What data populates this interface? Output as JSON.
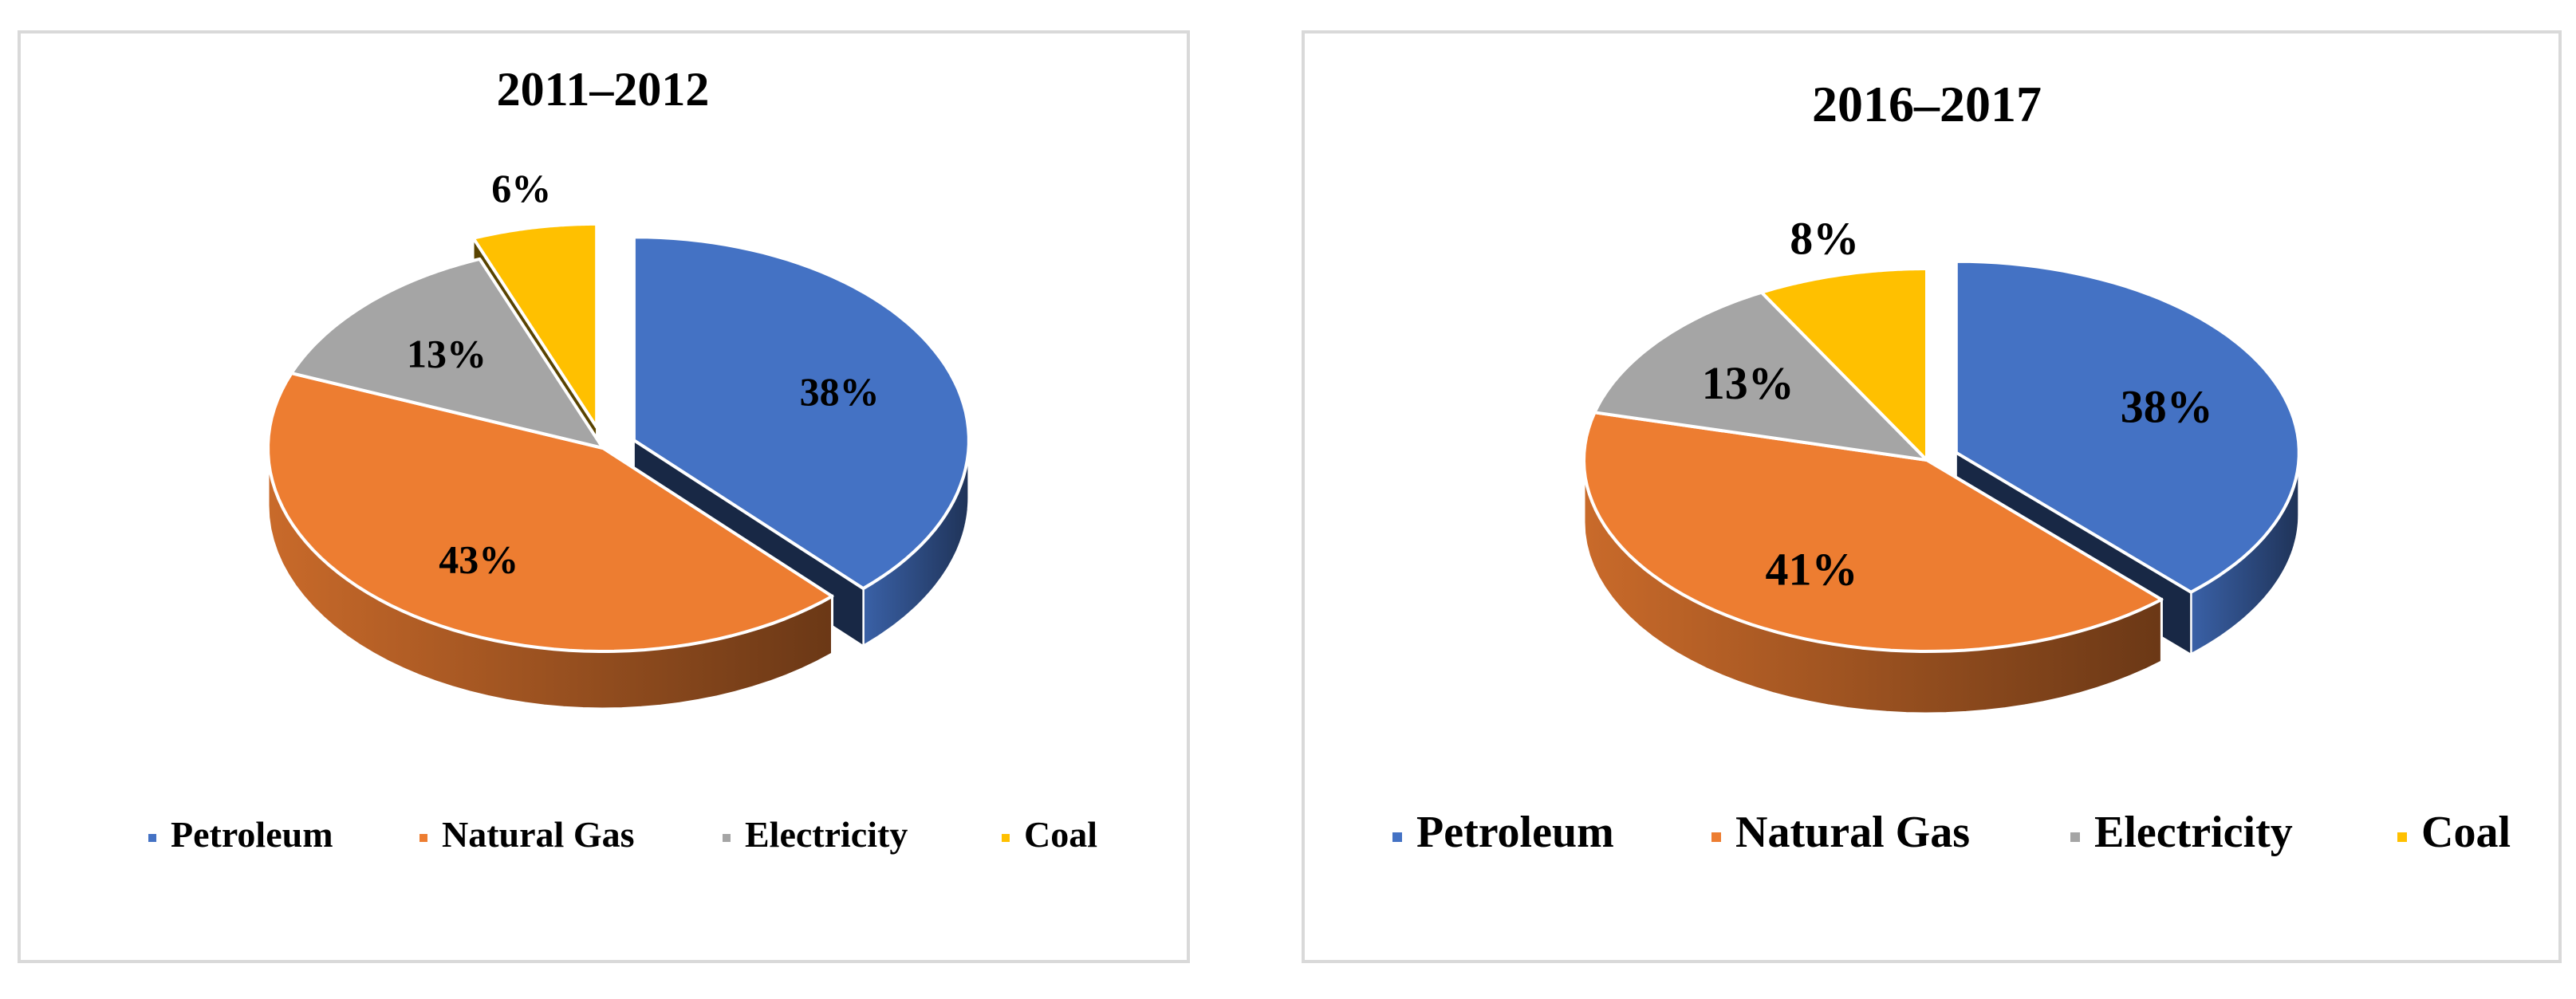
{
  "chart_data": [
    {
      "type": "pie",
      "title": "2011–2012",
      "categories": [
        "Petroleum",
        "Natural Gas",
        "Electricity",
        "Coal"
      ],
      "values": [
        38,
        43,
        13,
        6
      ],
      "labels": [
        "38%",
        "43%",
        "13%",
        "6%"
      ],
      "colors": [
        "#4472c4",
        "#ed7d31",
        "#a5a5a5",
        "#ffc000"
      ],
      "exploded": [
        "Petroleum",
        "Coal"
      ],
      "legend": "bottom"
    },
    {
      "type": "pie",
      "title": "2016–2017",
      "categories": [
        "Petroleum",
        "Natural Gas",
        "Electricity",
        "Coal"
      ],
      "values": [
        38,
        41,
        13,
        8
      ],
      "labels": [
        "38%",
        "41%",
        "13%",
        "8%"
      ],
      "colors": [
        "#4472c4",
        "#ed7d31",
        "#a5a5a5",
        "#ffc000"
      ],
      "exploded": [
        "Petroleum"
      ],
      "legend": "bottom"
    }
  ]
}
